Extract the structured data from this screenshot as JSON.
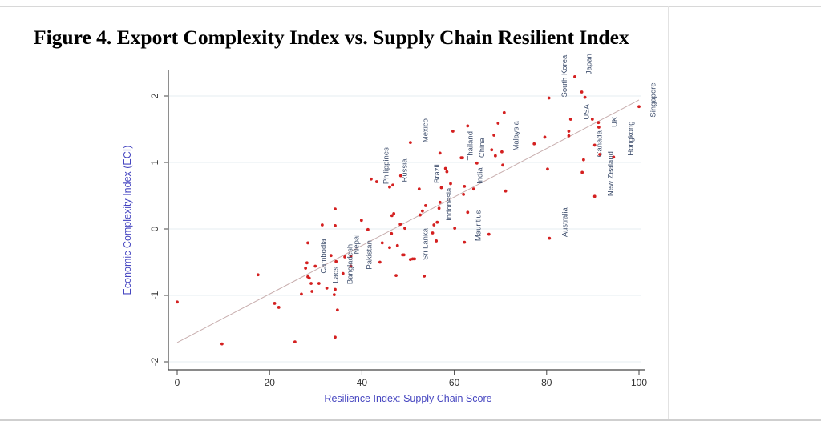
{
  "title": "Figure 4. Export Complexity Index vs. Supply Chain Resilient Index",
  "chart_data": {
    "type": "scatter",
    "title": "Figure 4. Export Complexity Index vs. Supply Chain Resilient Index",
    "xlabel": "Resilience Index: Supply Chain Score",
    "ylabel": "Economic Complexity Index (ECI)",
    "xlim": [
      -2,
      102
    ],
    "ylim": [
      -2.2,
      2.4
    ],
    "xticks": [
      0,
      20,
      40,
      60,
      80,
      100
    ],
    "yticks": [
      -2,
      -1,
      0,
      1,
      2
    ],
    "grid": "horizontal",
    "colors": {
      "points": "#d42020",
      "fit_line": "#c8aeae",
      "labels": "#40506e",
      "axis_title": "#4646c0"
    },
    "fit_line": {
      "x": [
        0,
        100
      ],
      "y": [
        -1.71,
        1.94
      ]
    },
    "points": [
      [
        0,
        -1.1
      ],
      [
        9.7,
        -1.73
      ],
      [
        17.5,
        -0.69
      ],
      [
        21.1,
        -1.12
      ],
      [
        22.0,
        -1.18
      ],
      [
        25.5,
        -1.7
      ],
      [
        26.9,
        -0.98
      ],
      [
        27.8,
        -0.59
      ],
      [
        28.1,
        -0.51
      ],
      [
        28.3,
        -0.21
      ],
      [
        28.3,
        -0.72
      ],
      [
        28.6,
        -0.74
      ],
      [
        29.0,
        -0.82
      ],
      [
        29.2,
        -0.94
      ],
      [
        29.9,
        -0.56
      ],
      [
        30.7,
        -0.82
      ],
      [
        31.4,
        0.06
      ],
      [
        32.4,
        -0.89
      ],
      [
        33.3,
        -0.4
      ],
      [
        34.0,
        -0.99
      ],
      [
        34.2,
        0.3
      ],
      [
        34.2,
        0.05
      ],
      [
        34.2,
        -0.91
      ],
      [
        34.4,
        -0.49
      ],
      [
        34.2,
        -1.63
      ],
      [
        34.7,
        -1.22
      ],
      [
        35.9,
        -0.67
      ],
      [
        36.3,
        -0.42
      ],
      [
        37.6,
        -0.41
      ],
      [
        37.6,
        -0.56
      ],
      [
        39.9,
        0.13
      ],
      [
        41.3,
        -0.01
      ],
      [
        42.0,
        0.75
      ],
      [
        43.2,
        0.71
      ],
      [
        43.9,
        -0.5
      ],
      [
        44.4,
        -0.21
      ],
      [
        46.0,
        -0.28
      ],
      [
        46.0,
        0.63
      ],
      [
        46.7,
        0.66
      ],
      [
        46.4,
        -0.07
      ],
      [
        46.5,
        0.2
      ],
      [
        46.9,
        0.23
      ],
      [
        47.4,
        -0.7
      ],
      [
        47.7,
        -0.25
      ],
      [
        48.3,
        0.07
      ],
      [
        48.4,
        0.8
      ],
      [
        48.8,
        -0.39
      ],
      [
        49.1,
        -0.39
      ],
      [
        49.3,
        0.01
      ],
      [
        50.5,
        1.3
      ],
      [
        50.5,
        -0.46
      ],
      [
        51.0,
        -0.45
      ],
      [
        51.4,
        -0.45
      ],
      [
        52.4,
        0.6
      ],
      [
        52.6,
        0.21
      ],
      [
        53.1,
        0.27
      ],
      [
        53.5,
        -0.71
      ],
      [
        53.8,
        0.35
      ],
      [
        55.3,
        -0.06
      ],
      [
        55.6,
        0.06
      ],
      [
        56.3,
        0.1
      ],
      [
        56.1,
        -0.18
      ],
      [
        56.7,
        0.31
      ],
      [
        56.9,
        0.4
      ],
      [
        57.2,
        0.62
      ],
      [
        56.9,
        1.14
      ],
      [
        58.1,
        0.91
      ],
      [
        58.4,
        0.86
      ],
      [
        59.2,
        0.68
      ],
      [
        59.7,
        1.47
      ],
      [
        60.1,
        0.01
      ],
      [
        61.5,
        1.07
      ],
      [
        61.8,
        1.07
      ],
      [
        62.0,
        0.52
      ],
      [
        62.2,
        -0.2
      ],
      [
        62.2,
        0.64
      ],
      [
        62.9,
        1.55
      ],
      [
        62.9,
        0.25
      ],
      [
        64.2,
        0.6
      ],
      [
        64.9,
        0.99
      ],
      [
        67.5,
        -0.08
      ],
      [
        68.1,
        1.19
      ],
      [
        68.6,
        1.41
      ],
      [
        68.9,
        1.1
      ],
      [
        69.5,
        1.59
      ],
      [
        70.3,
        1.16
      ],
      [
        70.5,
        0.96
      ],
      [
        70.8,
        1.75
      ],
      [
        71.1,
        0.57
      ],
      [
        77.3,
        1.28
      ],
      [
        79.6,
        1.38
      ],
      [
        80.2,
        0.9
      ],
      [
        80.5,
        1.97
      ],
      [
        80.6,
        -0.14
      ],
      [
        84.8,
        1.4
      ],
      [
        84.8,
        1.47
      ],
      [
        85.2,
        1.65
      ],
      [
        86.1,
        2.29
      ],
      [
        87.6,
        2.06
      ],
      [
        87.7,
        0.85
      ],
      [
        88.0,
        1.04
      ],
      [
        88.3,
        1.98
      ],
      [
        89.9,
        1.65
      ],
      [
        90.4,
        0.49
      ],
      [
        90.4,
        1.26
      ],
      [
        91.2,
        1.6
      ],
      [
        91.3,
        1.53
      ],
      [
        91.5,
        1.12
      ],
      [
        94.5,
        1.08
      ],
      [
        100,
        1.84
      ]
    ],
    "annotations": [
      {
        "text": "Mexico",
        "x": 53.8,
        "y": 1.48
      },
      {
        "text": "Philippines",
        "x": 45.3,
        "y": 0.95
      },
      {
        "text": "Russia",
        "x": 49.3,
        "y": 0.88
      },
      {
        "text": "Brazil",
        "x": 56.3,
        "y": 0.83
      },
      {
        "text": "Indonesia",
        "x": 58.9,
        "y": 0.37
      },
      {
        "text": "Sri Lanka",
        "x": 53.8,
        "y": -0.23
      },
      {
        "text": "Mauritius",
        "x": 65.3,
        "y": 0.05
      },
      {
        "text": "India",
        "x": 65.6,
        "y": 0.8
      },
      {
        "text": "Thailand",
        "x": 64.6,
        "y": 1.25
      },
      {
        "text": "China",
        "x": 64.8,
        "y": 1.22
      },
      {
        "text": "Malaysia",
        "x": 73.4,
        "y": 1.4
      },
      {
        "text": "South Korea",
        "x": 83.9,
        "y": 2.3
      },
      {
        "text": "Japan",
        "x": 89.2,
        "y": 2.48
      },
      {
        "text": "USA",
        "x": 88.7,
        "y": 1.76
      },
      {
        "text": "Singapore",
        "x": 103.1,
        "y": 1.94
      },
      {
        "text": "Canada",
        "x": 91.5,
        "y": 1.28
      },
      {
        "text": "UK",
        "x": 94.8,
        "y": 1.61
      },
      {
        "text": "Hongkong",
        "x": 98.3,
        "y": 1.36
      },
      {
        "text": "New Zealand",
        "x": 93.9,
        "y": 0.83
      },
      {
        "text": "Australia",
        "x": 84.0,
        "y": 0.1
      },
      {
        "text": "Cambodia",
        "x": 31.8,
        "y": -0.41
      },
      {
        "text": "Laos",
        "x": 34.4,
        "y": -0.69
      },
      {
        "text": "Bangladesh",
        "x": 37.5,
        "y": -0.53
      },
      {
        "text": "Nepal",
        "x": 39.6,
        "y": -0.23
      },
      {
        "text": "Pakistan",
        "x": 41.0,
        "y": -0.39
      }
    ]
  }
}
